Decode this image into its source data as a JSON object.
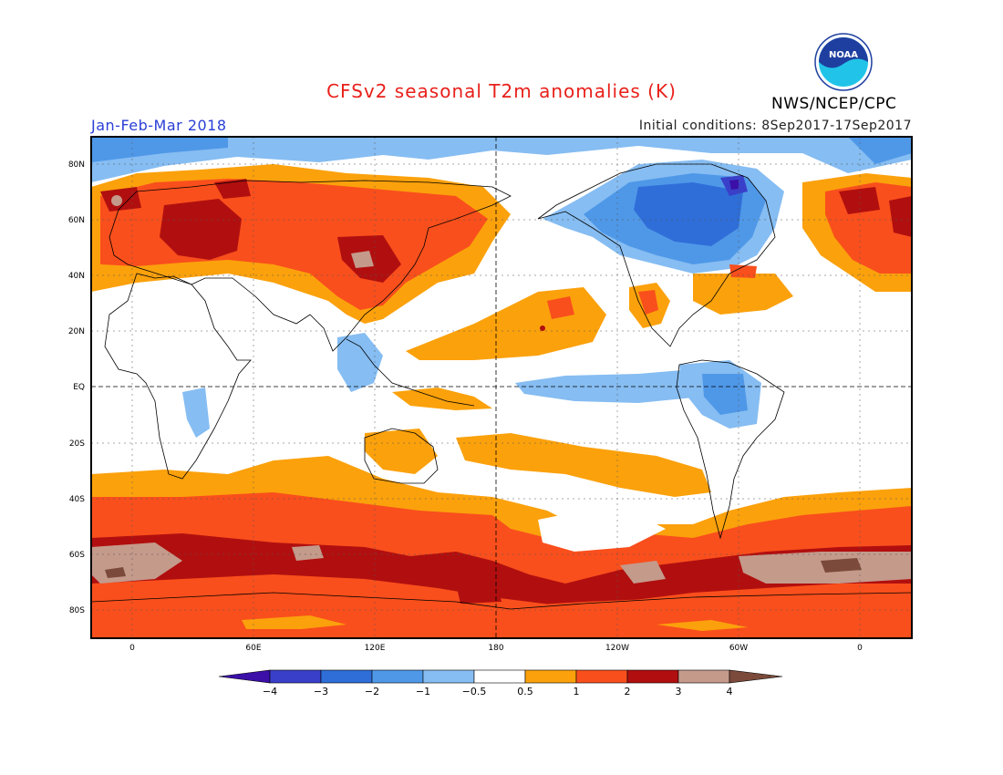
{
  "header": {
    "title": "CFSv2 seasonal T2m anomalies (K)",
    "agency": "NWS/NCEP/CPC",
    "season": "Jan-Feb-Mar 2018",
    "initial_conditions": "Initial conditions: 8Sep2017-17Sep2017",
    "logo_text": "NOAA"
  },
  "axes": {
    "lat_labels": [
      "80N",
      "60N",
      "40N",
      "20N",
      "EQ",
      "20S",
      "40S",
      "60S",
      "80S"
    ],
    "lon_labels": [
      "0",
      "60E",
      "120E",
      "180",
      "120W",
      "60W",
      "0"
    ]
  },
  "colorbar": {
    "labels": [
      "-4",
      "-3",
      "-2",
      "-1",
      "-0.5",
      "0.5",
      "1",
      "2",
      "3",
      "4"
    ],
    "colors": [
      "#3b0fa8",
      "#3a3fc9",
      "#2f6ed8",
      "#4f98e8",
      "#86bdf2",
      "#ffffff",
      "#fba10c",
      "#f94f1c",
      "#b10f0f",
      "#c49a8b",
      "#7b4a3a"
    ]
  },
  "colors": {
    "title": "#e8201a",
    "season": "#2a3fd6"
  }
}
